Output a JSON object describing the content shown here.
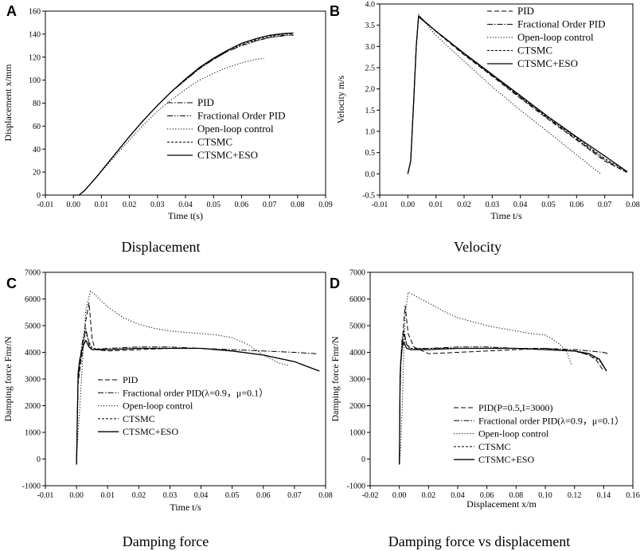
{
  "chart_data": [
    {
      "type": "line",
      "letter": "A",
      "caption": "Displacement",
      "xlabel": "Time t(s)",
      "ylabel": "Displacement x/mm",
      "xlim": [
        -0.01,
        0.09
      ],
      "ylim": [
        0,
        160
      ],
      "xticks": [
        "-0.01",
        "0.00",
        "0.01",
        "0.02",
        "0.03",
        "0.04",
        "0.05",
        "0.06",
        "0.07",
        "0.08",
        "0.09"
      ],
      "yticks": [
        "0",
        "20",
        "40",
        "60",
        "80",
        "100",
        "120",
        "140",
        "160"
      ],
      "legend_position": "lower-right",
      "series": [
        {
          "name": "PID",
          "style": "dashdot",
          "x": [
            0,
            0.002,
            0.004,
            0.008,
            0.012,
            0.016,
            0.02,
            0.025,
            0.03,
            0.035,
            0.04,
            0.045,
            0.05,
            0.055,
            0.06,
            0.065,
            0.07,
            0.075,
            0.0785
          ],
          "y": [
            0,
            0,
            4,
            15,
            27,
            39,
            51,
            65,
            78,
            90,
            100,
            110,
            118,
            125,
            130,
            134,
            137,
            139,
            139.5
          ]
        },
        {
          "name": "Fractional Order PID",
          "style": "dashdotdot",
          "x": [
            0,
            0.002,
            0.004,
            0.008,
            0.012,
            0.016,
            0.02,
            0.025,
            0.03,
            0.035,
            0.04,
            0.045,
            0.05,
            0.055,
            0.06,
            0.065,
            0.07,
            0.075,
            0.0785
          ],
          "y": [
            0,
            0,
            4,
            15,
            27,
            39,
            51,
            65,
            78,
            90,
            100,
            110,
            118,
            125,
            130,
            134,
            137,
            138.5,
            139
          ]
        },
        {
          "name": "Open-loop control",
          "style": "dotted",
          "x": [
            0,
            0.002,
            0.004,
            0.008,
            0.012,
            0.016,
            0.02,
            0.025,
            0.03,
            0.035,
            0.04,
            0.045,
            0.05,
            0.055,
            0.06,
            0.065,
            0.068
          ],
          "y": [
            0,
            0,
            4,
            15,
            26,
            37,
            48,
            61,
            73,
            83,
            92,
            100,
            106,
            111,
            115,
            118,
            119
          ]
        },
        {
          "name": "CTSMC",
          "style": "shortdash",
          "x": [
            0,
            0.002,
            0.004,
            0.008,
            0.012,
            0.016,
            0.02,
            0.025,
            0.03,
            0.035,
            0.04,
            0.045,
            0.05,
            0.055,
            0.06,
            0.065,
            0.07,
            0.075,
            0.0785
          ],
          "y": [
            0,
            0,
            4,
            15,
            27,
            39,
            51,
            65,
            78,
            90,
            101,
            111,
            119,
            126,
            131,
            135,
            138,
            140,
            140.5
          ]
        },
        {
          "name": "CTSMC+ESO",
          "style": "solid",
          "x": [
            0,
            0.002,
            0.004,
            0.008,
            0.012,
            0.016,
            0.02,
            0.025,
            0.03,
            0.035,
            0.04,
            0.045,
            0.05,
            0.055,
            0.06,
            0.065,
            0.07,
            0.075,
            0.0785
          ],
          "y": [
            0,
            0,
            4,
            15,
            27,
            39,
            51,
            65,
            78,
            90,
            101,
            111,
            119,
            126,
            132,
            136,
            139,
            140.5,
            141
          ]
        }
      ]
    },
    {
      "type": "line",
      "letter": "B",
      "caption": "Velocity",
      "xlabel": "Time t/s",
      "ylabel": "Velocity m/s",
      "xlim": [
        -0.01,
        0.08
      ],
      "ylim": [
        -0.5,
        4.0
      ],
      "xticks": [
        "-0.01",
        "0.00",
        "0.01",
        "0.02",
        "0.03",
        "0.04",
        "0.05",
        "0.06",
        "0.07",
        "0.08"
      ],
      "yticks": [
        "-0.5",
        "0.0",
        "0.5",
        "1.0",
        "1.5",
        "2.0",
        "2.5",
        "3.0",
        "3.5",
        "4.0"
      ],
      "legend_position": "top-right",
      "series": [
        {
          "name": "PID",
          "style": "dashed",
          "x": [
            0,
            0.001,
            0.002,
            0.003,
            0.0038,
            0.01,
            0.02,
            0.03,
            0.04,
            0.05,
            0.06,
            0.07,
            0.0775
          ],
          "y": [
            0,
            0.3,
            1.6,
            3.0,
            3.72,
            3.35,
            2.8,
            2.3,
            1.78,
            1.28,
            0.8,
            0.3,
            0.05
          ]
        },
        {
          "name": "Fractional Order PID",
          "style": "dashdot",
          "x": [
            0,
            0.001,
            0.002,
            0.003,
            0.0038,
            0.01,
            0.02,
            0.03,
            0.04,
            0.05,
            0.06,
            0.07,
            0.0778
          ],
          "y": [
            0,
            0.3,
            1.6,
            3.0,
            3.72,
            3.36,
            2.82,
            2.32,
            1.8,
            1.3,
            0.82,
            0.33,
            0.03
          ]
        },
        {
          "name": "Open-loop control",
          "style": "dotted",
          "x": [
            0,
            0.001,
            0.002,
            0.003,
            0.0038,
            0.01,
            0.02,
            0.03,
            0.04,
            0.05,
            0.06,
            0.0685
          ],
          "y": [
            0,
            0.3,
            1.6,
            3.0,
            3.75,
            3.26,
            2.65,
            2.05,
            1.5,
            0.98,
            0.45,
            0.0
          ]
        },
        {
          "name": "CTSMC",
          "style": "shortdash",
          "x": [
            0,
            0.001,
            0.002,
            0.003,
            0.0038,
            0.01,
            0.02,
            0.03,
            0.04,
            0.05,
            0.06,
            0.07,
            0.078
          ],
          "y": [
            0,
            0.3,
            1.6,
            3.0,
            3.72,
            3.36,
            2.83,
            2.32,
            1.82,
            1.32,
            0.85,
            0.36,
            0.05
          ]
        },
        {
          "name": "CTSMC+ESO",
          "style": "solid",
          "x": [
            0,
            0.001,
            0.002,
            0.003,
            0.0038,
            0.01,
            0.02,
            0.03,
            0.04,
            0.05,
            0.06,
            0.07,
            0.078
          ],
          "y": [
            0,
            0.3,
            1.6,
            3.0,
            3.7,
            3.36,
            2.84,
            2.34,
            1.84,
            1.34,
            0.87,
            0.42,
            0.05
          ]
        }
      ]
    },
    {
      "type": "line",
      "letter": "C",
      "caption": "Damping force",
      "xlabel": "Time t/s",
      "ylabel": "Damping force Fmr/N",
      "xlim": [
        -0.01,
        0.08
      ],
      "ylim": [
        -1000,
        7000
      ],
      "xticks": [
        "-0.01",
        "0.00",
        "0.01",
        "0.02",
        "0.03",
        "0.04",
        "0.05",
        "0.06",
        "0.07",
        "0.08"
      ],
      "yticks": [
        "-1000",
        "0",
        "1000",
        "2000",
        "3000",
        "4000",
        "5000",
        "6000",
        "7000"
      ],
      "legend_position": "lower-left",
      "series": [
        {
          "name": "PID",
          "style": "dashed",
          "x": [
            0,
            0.0005,
            0.001,
            0.002,
            0.003,
            0.004,
            0.005,
            0.006,
            0.01,
            0.02,
            0.03,
            0.04,
            0.05,
            0.06,
            0.07,
            0.078
          ],
          "y": [
            -200,
            2800,
            3300,
            4100,
            5200,
            5850,
            4500,
            4100,
            4050,
            4100,
            4150,
            4150,
            4050,
            3900,
            3650,
            3300
          ]
        },
        {
          "name": "Fractional order PID(λ=0.9，μ=0.1）",
          "style": "dashdot",
          "x": [
            0,
            0.0005,
            0.001,
            0.002,
            0.003,
            0.004,
            0.005,
            0.01,
            0.02,
            0.03,
            0.04,
            0.05,
            0.06,
            0.07,
            0.077
          ],
          "y": [
            -200,
            3000,
            3600,
            4500,
            4900,
            4300,
            4100,
            4150,
            4200,
            4200,
            4150,
            4100,
            4050,
            4000,
            3950
          ]
        },
        {
          "name": "Open-loop control",
          "style": "dotted",
          "x": [
            0,
            0.0005,
            0.001,
            0.002,
            0.003,
            0.0045,
            0.006,
            0.01,
            0.015,
            0.02,
            0.025,
            0.03,
            0.035,
            0.04,
            0.045,
            0.05,
            0.055,
            0.06,
            0.065,
            0.0685
          ],
          "y": [
            -200,
            1000,
            1800,
            3800,
            5600,
            6300,
            6150,
            5700,
            5300,
            5050,
            4900,
            4800,
            4750,
            4700,
            4650,
            4550,
            4300,
            3900,
            3600,
            3500
          ]
        },
        {
          "name": "CTSMC",
          "style": "shortdash",
          "x": [
            0,
            0.0005,
            0.001,
            0.002,
            0.003,
            0.004,
            0.005,
            0.01,
            0.02,
            0.03,
            0.04,
            0.05,
            0.06,
            0.07,
            0.078
          ],
          "y": [
            -200,
            3000,
            3500,
            4300,
            4750,
            4400,
            4150,
            4100,
            4150,
            4150,
            4150,
            4050,
            3900,
            3650,
            3300
          ]
        },
        {
          "name": "CTSMC+ESO",
          "style": "solid",
          "x": [
            0,
            0.0005,
            0.001,
            0.002,
            0.003,
            0.004,
            0.005,
            0.01,
            0.02,
            0.03,
            0.04,
            0.05,
            0.06,
            0.07,
            0.078
          ],
          "y": [
            -200,
            3200,
            3700,
            4200,
            4450,
            4200,
            4100,
            4100,
            4150,
            4150,
            4150,
            4050,
            3900,
            3650,
            3300
          ]
        }
      ]
    },
    {
      "type": "line",
      "letter": "D",
      "caption": "Damping force vs displacement",
      "xlabel": "Displacement x/m",
      "ylabel": "Damping force Fmr/N",
      "xlim": [
        -0.02,
        0.16
      ],
      "ylim": [
        -1000,
        7000
      ],
      "xticks": [
        "-0.02",
        "0.00",
        "0.02",
        "0.04",
        "0.06",
        "0.08",
        "0.10",
        "0.12",
        "0.14",
        "0.16"
      ],
      "yticks": [
        "-1000",
        "0",
        "1000",
        "2000",
        "3000",
        "4000",
        "5000",
        "6000",
        "7000"
      ],
      "legend_position": "lower-right",
      "series": [
        {
          "name": "PID(P=0.5,I=3000)",
          "style": "dashed",
          "x": [
            0,
            0.0005,
            0.001,
            0.002,
            0.003,
            0.004,
            0.006,
            0.01,
            0.02,
            0.04,
            0.06,
            0.08,
            0.1,
            0.12,
            0.13,
            0.135,
            0.14
          ],
          "y": [
            -200,
            2500,
            3600,
            4300,
            5100,
            5750,
            4700,
            4200,
            3950,
            4000,
            4050,
            4100,
            4150,
            4050,
            3900,
            3700,
            3300
          ]
        },
        {
          "name": "Fractional order PID(λ=0.9，μ=0.1）",
          "style": "dashdot",
          "x": [
            0,
            0.0005,
            0.001,
            0.002,
            0.003,
            0.005,
            0.008,
            0.02,
            0.04,
            0.06,
            0.08,
            0.1,
            0.12,
            0.13,
            0.14,
            0.143
          ],
          "y": [
            -200,
            2800,
            3700,
            4600,
            4850,
            4300,
            4100,
            4150,
            4200,
            4200,
            4150,
            4150,
            4100,
            4050,
            4000,
            3950
          ]
        },
        {
          "name": "Open-loop control",
          "style": "dotted",
          "x": [
            0,
            0.001,
            0.002,
            0.003,
            0.004,
            0.006,
            0.01,
            0.02,
            0.03,
            0.04,
            0.05,
            0.06,
            0.07,
            0.08,
            0.09,
            0.1,
            0.105,
            0.11,
            0.115,
            0.118
          ],
          "y": [
            -200,
            500,
            2000,
            4000,
            5400,
            6250,
            6150,
            5850,
            5550,
            5300,
            5150,
            5000,
            4900,
            4800,
            4700,
            4650,
            4500,
            4300,
            4000,
            3500
          ]
        },
        {
          "name": "CTSMC",
          "style": "shortdash",
          "x": [
            0,
            0.0005,
            0.001,
            0.002,
            0.003,
            0.005,
            0.008,
            0.02,
            0.04,
            0.06,
            0.08,
            0.1,
            0.12,
            0.13,
            0.137,
            0.142
          ],
          "y": [
            -200,
            3000,
            3500,
            4300,
            4700,
            4300,
            4150,
            4150,
            4150,
            4150,
            4150,
            4100,
            4050,
            3900,
            3700,
            3300
          ]
        },
        {
          "name": "CTSMC+ESO",
          "style": "solid",
          "x": [
            0,
            0.0005,
            0.001,
            0.002,
            0.003,
            0.005,
            0.008,
            0.02,
            0.04,
            0.06,
            0.08,
            0.1,
            0.12,
            0.13,
            0.137,
            0.142
          ],
          "y": [
            -200,
            3100,
            3700,
            4200,
            4400,
            4150,
            4100,
            4100,
            4150,
            4150,
            4150,
            4100,
            4050,
            3950,
            3750,
            3300
          ]
        }
      ]
    }
  ]
}
